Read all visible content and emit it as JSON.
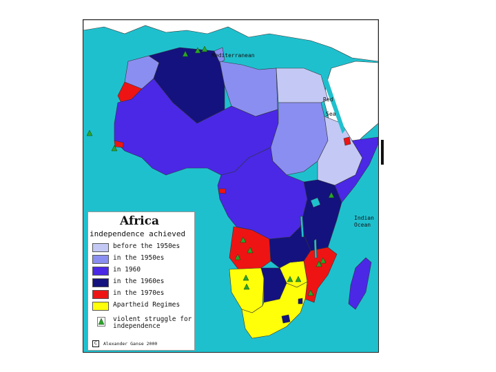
{
  "map": {
    "title": "Africa",
    "subtitle": "independence achieved",
    "sea_labels": {
      "mediterranean": "Mediterranean",
      "red": "Red",
      "sea": "Sea",
      "indian": "Indian",
      "ocean": "Ocean"
    },
    "legend": [
      {
        "label": "before the 1950es",
        "color": "#c4c8f4"
      },
      {
        "label": "in the 1950es",
        "color": "#8a8ef0"
      },
      {
        "label": "in 1960",
        "color": "#4a28e6"
      },
      {
        "label": "in the 1960es",
        "color": "#14127e"
      },
      {
        "label": "in the 1970es",
        "color": "#ee1414"
      },
      {
        "label": "Apartheid Regimes",
        "color": "#ffff0a"
      }
    ],
    "violent_label_line1": "violent struggle for",
    "violent_label_line2": "independence",
    "violent_icon_color": "#2aa52a",
    "copyright_symbol": "C",
    "copyright_text": "Alexander Ganse 2000",
    "ocean_color": "#1fc0ce"
  }
}
